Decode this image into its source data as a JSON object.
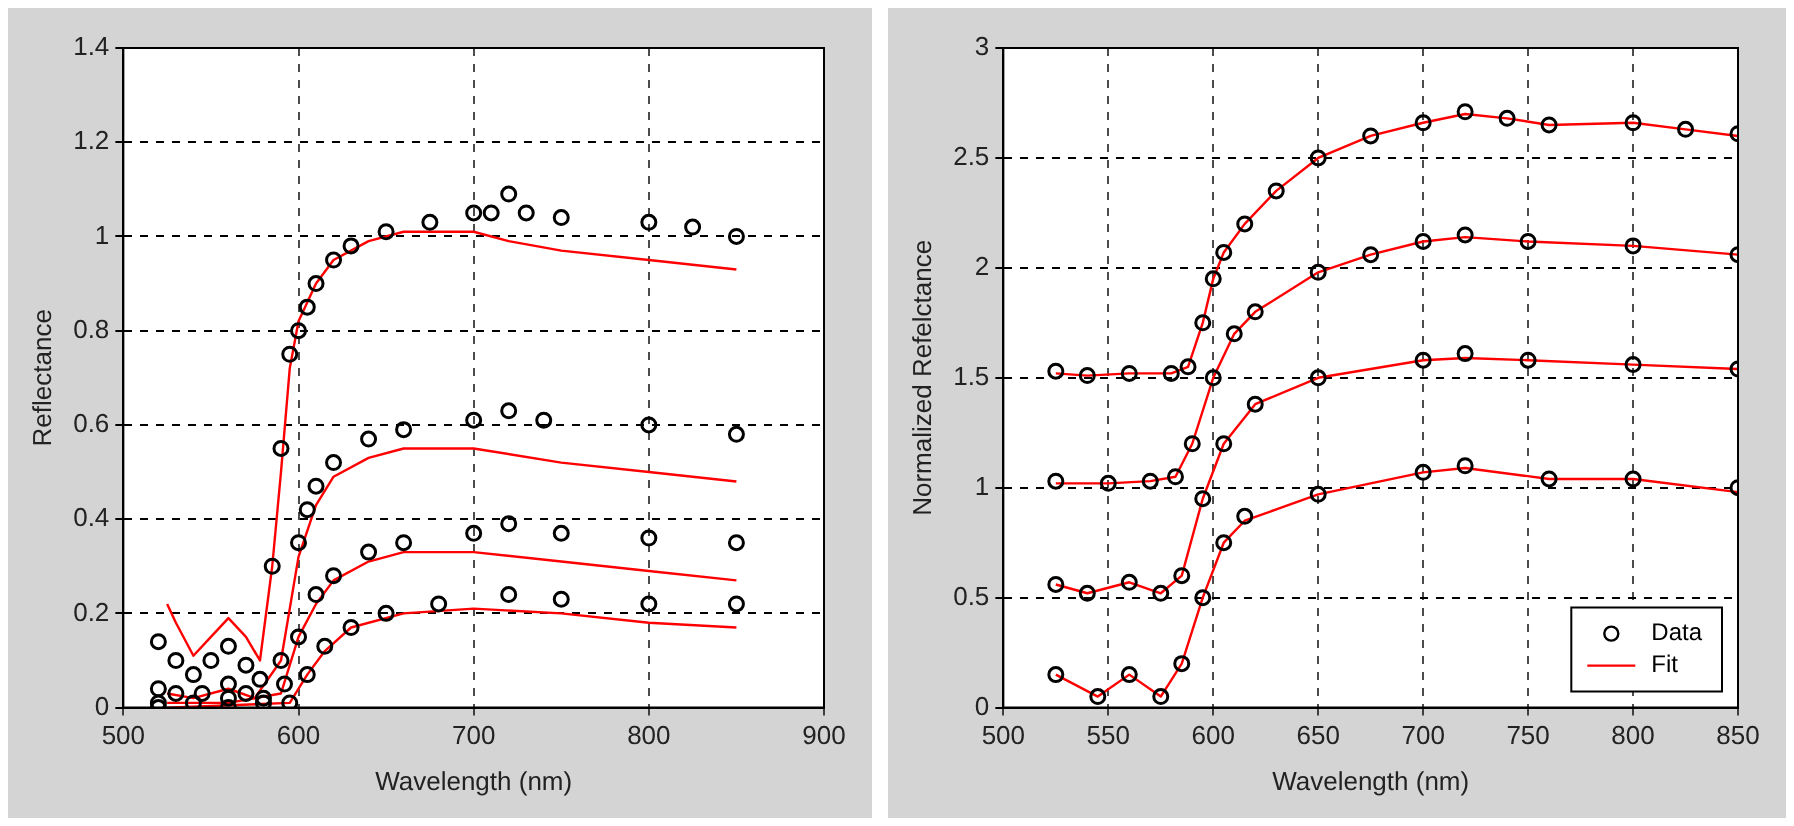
{
  "chart_data": [
    {
      "type": "scatter",
      "xlabel": "Wavelength (nm)",
      "ylabel": "Reflectance",
      "xlim": [
        500,
        900
      ],
      "xticks": [
        500,
        600,
        700,
        800,
        900
      ],
      "ylim": [
        0,
        1.4
      ],
      "yticks": [
        0,
        0.2,
        0.4,
        0.6,
        0.8,
        1,
        1.2,
        1.4
      ],
      "grid": true,
      "legend": false,
      "series": [
        {
          "marker": "circle",
          "color": "#000000",
          "x": [
            520,
            530,
            540,
            550,
            560,
            570,
            578,
            585,
            590,
            595,
            600,
            605,
            610,
            620,
            630,
            650,
            675,
            700,
            710,
            720,
            730,
            750,
            800,
            825,
            850
          ],
          "values": [
            0.14,
            0.1,
            0.07,
            0.1,
            0.13,
            0.09,
            0.06,
            0.3,
            0.55,
            0.75,
            0.8,
            0.85,
            0.9,
            0.95,
            0.98,
            1.01,
            1.03,
            1.05,
            1.05,
            1.09,
            1.05,
            1.04,
            1.03,
            1.02,
            1.0
          ]
        },
        {
          "marker": "circle",
          "color": "#000000",
          "x": [
            520,
            530,
            545,
            560,
            570,
            580,
            590,
            600,
            605,
            610,
            620,
            640,
            660,
            700,
            720,
            740,
            800,
            850
          ],
          "values": [
            0.04,
            0.03,
            0.03,
            0.05,
            0.03,
            0.02,
            0.1,
            0.35,
            0.42,
            0.47,
            0.52,
            0.57,
            0.59,
            0.61,
            0.63,
            0.61,
            0.6,
            0.58
          ]
        },
        {
          "marker": "circle",
          "color": "#000000",
          "x": [
            520,
            540,
            560,
            580,
            592,
            600,
            610,
            620,
            640,
            660,
            700,
            720,
            750,
            800,
            850
          ],
          "values": [
            0.01,
            0.01,
            0.02,
            0.01,
            0.05,
            0.15,
            0.24,
            0.28,
            0.33,
            0.35,
            0.37,
            0.39,
            0.37,
            0.36,
            0.35
          ]
        },
        {
          "marker": "circle",
          "color": "#000000",
          "x": [
            520,
            560,
            595,
            605,
            615,
            630,
            650,
            680,
            720,
            750,
            800,
            850
          ],
          "values": [
            0.0,
            0.0,
            0.01,
            0.07,
            0.13,
            0.17,
            0.2,
            0.22,
            0.24,
            0.23,
            0.22,
            0.22
          ]
        },
        {
          "type": "line",
          "marker": "none",
          "line_style": "solid",
          "color": "#ff0000",
          "x": [
            525,
            530,
            540,
            550,
            560,
            570,
            578,
            585,
            590,
            595,
            600,
            610,
            620,
            640,
            660,
            700,
            720,
            750,
            800,
            850
          ],
          "values": [
            0.22,
            0.18,
            0.11,
            0.15,
            0.19,
            0.15,
            0.1,
            0.3,
            0.5,
            0.72,
            0.82,
            0.9,
            0.95,
            0.99,
            1.01,
            1.01,
            0.99,
            0.97,
            0.95,
            0.93
          ]
        },
        {
          "type": "line",
          "marker": "none",
          "line_style": "solid",
          "color": "#ff0000",
          "x": [
            525,
            540,
            560,
            575,
            590,
            600,
            610,
            620,
            640,
            660,
            700,
            750,
            800,
            850
          ],
          "values": [
            0.03,
            0.02,
            0.04,
            0.02,
            0.1,
            0.32,
            0.43,
            0.49,
            0.53,
            0.55,
            0.55,
            0.52,
            0.5,
            0.48
          ]
        },
        {
          "type": "line",
          "marker": "none",
          "line_style": "solid",
          "color": "#ff0000",
          "x": [
            525,
            560,
            590,
            600,
            610,
            620,
            640,
            660,
            700,
            750,
            800,
            850
          ],
          "values": [
            0.01,
            0.01,
            0.03,
            0.15,
            0.22,
            0.27,
            0.31,
            0.33,
            0.33,
            0.31,
            0.29,
            0.27
          ]
        },
        {
          "type": "line",
          "marker": "none",
          "line_style": "solid",
          "color": "#ff0000",
          "x": [
            525,
            595,
            605,
            615,
            630,
            660,
            700,
            750,
            800,
            850
          ],
          "values": [
            0.0,
            0.01,
            0.07,
            0.12,
            0.17,
            0.2,
            0.21,
            0.2,
            0.18,
            0.17
          ]
        }
      ]
    },
    {
      "type": "scatter",
      "xlabel": "Wavelength (nm)",
      "ylabel": "Normalized Refelctance",
      "xlim": [
        500,
        850
      ],
      "xticks": [
        500,
        550,
        600,
        650,
        700,
        750,
        800,
        850
      ],
      "ylim": [
        0,
        3
      ],
      "yticks": [
        0,
        0.5,
        1,
        1.5,
        2,
        2.5,
        3
      ],
      "grid": true,
      "legend": "bottom right",
      "series": [
        {
          "name": "Data",
          "marker": "circle",
          "color": "#000000",
          "x": [
            525,
            540,
            560,
            580,
            588,
            595,
            600,
            605,
            615,
            630,
            650,
            675,
            700,
            720,
            740,
            760,
            800,
            825,
            850
          ],
          "values": [
            1.53,
            1.51,
            1.52,
            1.52,
            1.55,
            1.75,
            1.95,
            2.07,
            2.2,
            2.35,
            2.5,
            2.6,
            2.66,
            2.71,
            2.68,
            2.65,
            2.66,
            2.63,
            2.61
          ]
        },
        {
          "marker": "circle",
          "color": "#000000",
          "x": [
            525,
            550,
            570,
            582,
            590,
            600,
            610,
            620,
            650,
            675,
            700,
            720,
            750,
            800,
            850
          ],
          "values": [
            1.03,
            1.02,
            1.03,
            1.05,
            1.2,
            1.5,
            1.7,
            1.8,
            1.98,
            2.06,
            2.12,
            2.15,
            2.12,
            2.1,
            2.06
          ]
        },
        {
          "marker": "circle",
          "color": "#000000",
          "x": [
            525,
            540,
            560,
            575,
            585,
            595,
            605,
            620,
            650,
            700,
            720,
            750,
            800,
            850
          ],
          "values": [
            0.56,
            0.52,
            0.57,
            0.52,
            0.6,
            0.95,
            1.2,
            1.38,
            1.5,
            1.58,
            1.61,
            1.58,
            1.56,
            1.54
          ]
        },
        {
          "marker": "circle",
          "color": "#000000",
          "x": [
            525,
            545,
            560,
            575,
            585,
            595,
            605,
            615,
            650,
            700,
            720,
            760,
            800,
            850
          ],
          "values": [
            0.15,
            0.05,
            0.15,
            0.05,
            0.2,
            0.5,
            0.75,
            0.87,
            0.97,
            1.07,
            1.1,
            1.04,
            1.04,
            1.0
          ]
        },
        {
          "type": "line",
          "name": "Fit",
          "marker": "none",
          "line_style": "solid",
          "color": "#ff0000",
          "x": [
            525,
            540,
            560,
            580,
            588,
            595,
            600,
            605,
            615,
            630,
            650,
            675,
            700,
            720,
            740,
            760,
            800,
            825,
            850
          ],
          "values": [
            1.52,
            1.51,
            1.52,
            1.52,
            1.55,
            1.75,
            1.95,
            2.07,
            2.2,
            2.35,
            2.5,
            2.6,
            2.66,
            2.7,
            2.68,
            2.65,
            2.66,
            2.63,
            2.6
          ]
        },
        {
          "type": "line",
          "marker": "none",
          "line_style": "solid",
          "color": "#ff0000",
          "x": [
            525,
            550,
            570,
            582,
            590,
            600,
            610,
            620,
            650,
            675,
            700,
            720,
            750,
            800,
            850
          ],
          "values": [
            1.02,
            1.02,
            1.03,
            1.05,
            1.2,
            1.5,
            1.7,
            1.8,
            1.98,
            2.06,
            2.12,
            2.14,
            2.12,
            2.1,
            2.06
          ]
        },
        {
          "type": "line",
          "marker": "none",
          "line_style": "solid",
          "color": "#ff0000",
          "x": [
            525,
            540,
            560,
            575,
            585,
            595,
            605,
            620,
            650,
            700,
            720,
            750,
            800,
            850
          ],
          "values": [
            0.56,
            0.52,
            0.57,
            0.52,
            0.6,
            0.95,
            1.2,
            1.38,
            1.5,
            1.58,
            1.59,
            1.58,
            1.56,
            1.54
          ]
        },
        {
          "type": "line",
          "marker": "none",
          "line_style": "solid",
          "color": "#ff0000",
          "x": [
            525,
            545,
            560,
            575,
            585,
            595,
            605,
            615,
            650,
            700,
            720,
            760,
            800,
            850
          ],
          "values": [
            0.15,
            0.05,
            0.15,
            0.05,
            0.2,
            0.5,
            0.75,
            0.85,
            0.97,
            1.07,
            1.09,
            1.04,
            1.04,
            0.98
          ]
        }
      ]
    }
  ]
}
